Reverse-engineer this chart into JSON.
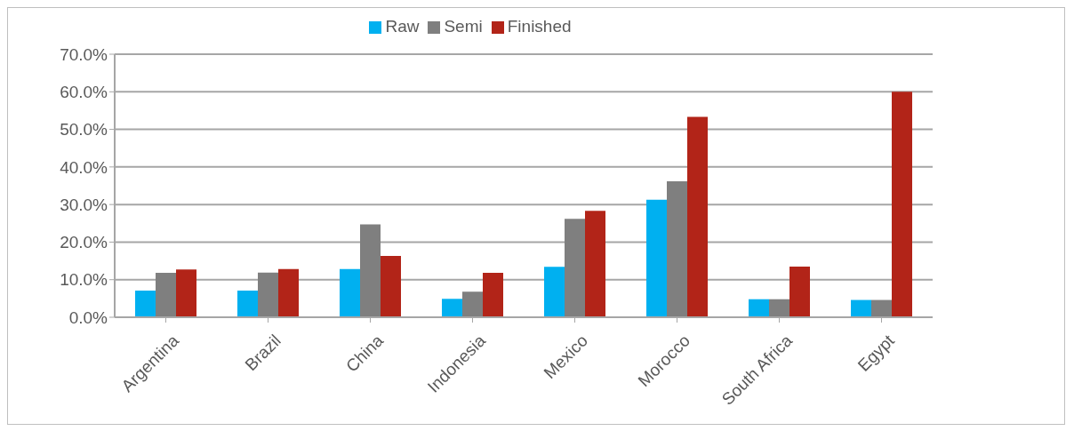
{
  "chart_data": {
    "type": "bar",
    "categories": [
      "Argentina",
      "Brazil",
      "China",
      "Indonesia",
      "Mexico",
      "Morocco",
      "South Africa",
      "Egypt"
    ],
    "series": [
      {
        "name": "Raw",
        "color": "#00b0f0",
        "values": [
          7.1,
          7.1,
          12.8,
          4.9,
          13.4,
          31.3,
          4.8,
          4.6
        ]
      },
      {
        "name": "Semi",
        "color": "#7f7f7f",
        "values": [
          11.8,
          11.9,
          24.7,
          6.8,
          26.2,
          36.2,
          4.8,
          4.6
        ]
      },
      {
        "name": "Finished",
        "color": "#b22418",
        "values": [
          12.7,
          12.8,
          16.3,
          11.8,
          28.3,
          53.3,
          13.5,
          60.0
        ]
      }
    ],
    "ylim": [
      0,
      70
    ],
    "yticks": [
      {
        "value": 0,
        "label": "0.0%"
      },
      {
        "value": 10,
        "label": "10.0%"
      },
      {
        "value": 20,
        "label": "20.0%"
      },
      {
        "value": 30,
        "label": "30.0%"
      },
      {
        "value": 40,
        "label": "40.0%"
      },
      {
        "value": 50,
        "label": "50.0%"
      },
      {
        "value": 60,
        "label": "60.0%"
      },
      {
        "value": 70,
        "label": "70.0%"
      }
    ],
    "grid": "y",
    "legend": "top"
  }
}
